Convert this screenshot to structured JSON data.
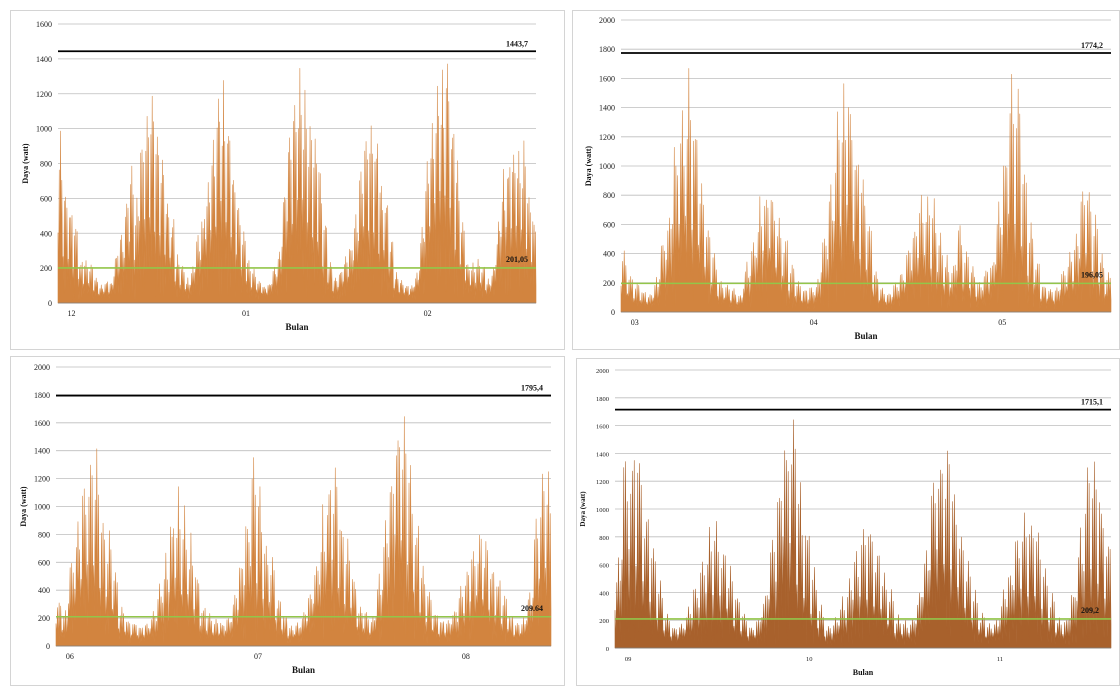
{
  "chart_data": [
    {
      "type": "area",
      "xlabel": "Bulan",
      "ylabel": "Daya (watt)",
      "ylim": [
        0,
        1600
      ],
      "yticks": [
        0,
        200,
        400,
        600,
        800,
        1000,
        1200,
        1400,
        1600
      ],
      "month_ticks": [
        "12",
        "01",
        "02"
      ],
      "grid": true,
      "series_color": "#d2843f",
      "max_line": {
        "value": 1443.7,
        "label": "1443,7",
        "color": "#000000"
      },
      "avg_line": {
        "value": 201.05,
        "label": "201,05",
        "color": "#92c64a"
      },
      "daily_peaks": [
        1040,
        700,
        600,
        480,
        260,
        240,
        230,
        150,
        90,
        120,
        110,
        300,
        410,
        630,
        820,
        650,
        1010,
        1200,
        1270,
        1050,
        840,
        700,
        540,
        290,
        220,
        130,
        200,
        420,
        540,
        770,
        1010,
        1210,
        1260,
        1080,
        800,
        640,
        400,
        250,
        180,
        130,
        90,
        110,
        200,
        330,
        710,
        1000,
        1260,
        1390,
        1340,
        1100,
        930,
        860,
        500,
        250,
        140,
        200,
        250,
        350,
        520,
        860,
        1030,
        1140,
        1050,
        750,
        640,
        400,
        160,
        120,
        90,
        80,
        170,
        420,
        820,
        1150,
        1400,
        1440,
        1420,
        1160,
        830,
        490,
        250,
        220,
        240,
        230,
        120,
        200,
        480,
        790,
        920,
        980,
        960,
        930,
        720,
        540
      ]
    },
    {
      "type": "area",
      "xlabel": "Bulan",
      "ylabel": "Daya (watt)",
      "ylim": [
        0,
        2000
      ],
      "yticks": [
        0,
        200,
        400,
        600,
        800,
        1000,
        1200,
        1400,
        1600,
        1800,
        2000
      ],
      "month_ticks": [
        "03",
        "04",
        "05"
      ],
      "grid": true,
      "series_color": "#d2843f",
      "max_line": {
        "value": 1774.2,
        "label": "1774,2",
        "color": "#000000"
      },
      "avg_line": {
        "value": 196.05,
        "label": "196,05",
        "color": "#92c64a"
      },
      "daily_peaks": [
        430,
        290,
        200,
        140,
        120,
        220,
        570,
        820,
        1300,
        1490,
        1650,
        1530,
        1100,
        680,
        420,
        220,
        180,
        150,
        120,
        330,
        550,
        800,
        950,
        920,
        710,
        590,
        360,
        230,
        150,
        170,
        210,
        560,
        920,
        1400,
        1650,
        1770,
        1290,
        980,
        650,
        280,
        160,
        130,
        210,
        300,
        480,
        650,
        850,
        860,
        790,
        570,
        380,
        380,
        660,
        450,
        330,
        230,
        320,
        390,
        780,
        1150,
        1620,
        1600,
        1080,
        650,
        410,
        180,
        180,
        150,
        290,
        420,
        540,
        930,
        920,
        660,
        400,
        270
      ]
    },
    {
      "type": "area",
      "xlabel": "Bulan",
      "ylabel": "Daya (watt)",
      "ylim": [
        0,
        2000
      ],
      "yticks": [
        0,
        200,
        400,
        600,
        800,
        1000,
        1200,
        1400,
        1600,
        1800,
        2000
      ],
      "month_ticks": [
        "06",
        "07",
        "08"
      ],
      "grid": true,
      "series_color": "#d2843f",
      "max_line": {
        "value": 1795.4,
        "label": "1795,4",
        "color": "#000000"
      },
      "avg_line": {
        "value": 209.64,
        "label": "209.64",
        "color": "#92c64a"
      },
      "daily_peaks": [
        380,
        250,
        740,
        1020,
        1340,
        1490,
        1480,
        1110,
        840,
        640,
        300,
        200,
        160,
        130,
        150,
        250,
        450,
        700,
        1000,
        1170,
        1010,
        820,
        560,
        300,
        230,
        180,
        170,
        200,
        420,
        660,
        1010,
        1390,
        1210,
        840,
        650,
        380,
        220,
        130,
        160,
        250,
        450,
        700,
        1000,
        1340,
        1360,
        1000,
        780,
        560,
        300,
        250,
        210,
        500,
        900,
        1380,
        1800,
        1700,
        1400,
        1000,
        640,
        430,
        240,
        190,
        180,
        300,
        440,
        620,
        800,
        880,
        800,
        650,
        530,
        400,
        230,
        170,
        200,
        400,
        930,
        1280,
        1300
      ]
    },
    {
      "type": "area",
      "xlabel": "Bulan",
      "ylabel": "Daya (watt)",
      "ylim": [
        0,
        2000
      ],
      "yticks": [
        0,
        200,
        400,
        600,
        800,
        1000,
        1200,
        1400,
        1600,
        1800,
        2000
      ],
      "month_ticks": [
        "09",
        "10",
        "11"
      ],
      "grid": true,
      "series_color": "#a8612c",
      "max_line": {
        "value": 1715.1,
        "label": "1715,1",
        "color": "#000000"
      },
      "avg_line": {
        "value": 209.2,
        "label": "209,2",
        "color": "#92c64a"
      },
      "daily_peaks": [
        680,
        1560,
        1590,
        1550,
        1180,
        900,
        520,
        260,
        150,
        170,
        300,
        500,
        700,
        880,
        920,
        820,
        600,
        400,
        250,
        150,
        200,
        450,
        900,
        1290,
        1720,
        1660,
        1230,
        930,
        600,
        300,
        150,
        200,
        350,
        500,
        760,
        860,
        930,
        800,
        600,
        420,
        240,
        180,
        220,
        450,
        800,
        1300,
        1670,
        1600,
        1250,
        950,
        650,
        400,
        250,
        170,
        200,
        400,
        650,
        960,
        1000,
        1010,
        900,
        640,
        400,
        220,
        210,
        450,
        900,
        1460,
        1470,
        1250,
        850
      ]
    }
  ]
}
